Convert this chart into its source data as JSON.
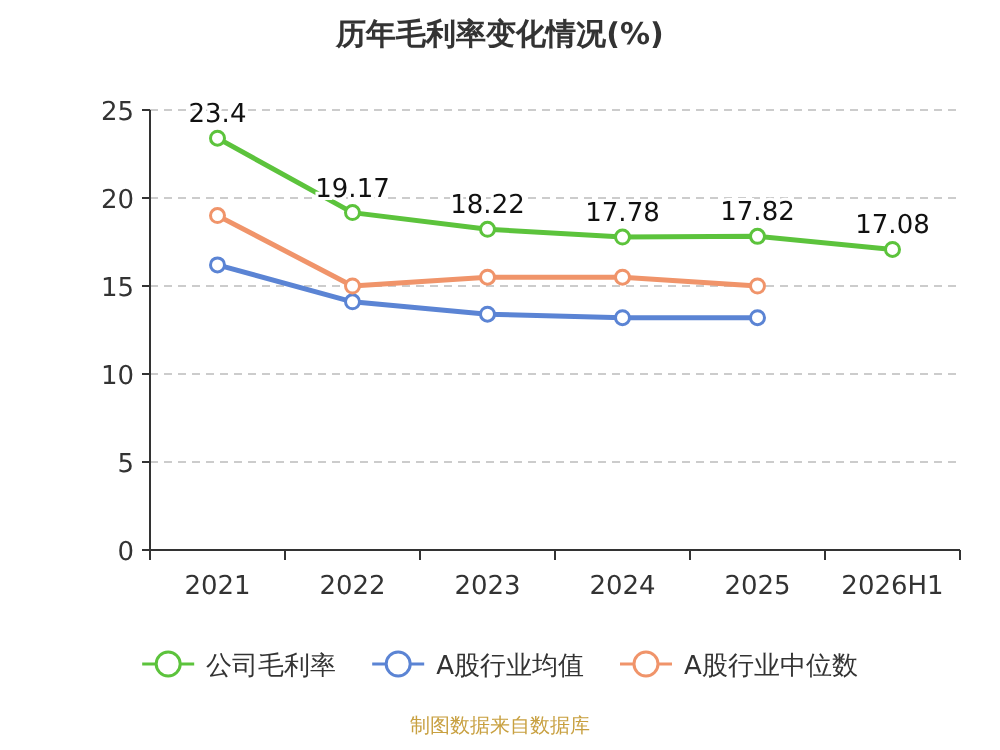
{
  "chart_data": {
    "type": "line",
    "title": "历年毛利率变化情况(%)",
    "categories": [
      "2021",
      "2022",
      "2023",
      "2024",
      "2025",
      "2026H1"
    ],
    "series": [
      {
        "name": "公司毛利率",
        "color": "#5cc33c",
        "values": [
          23.4,
          19.17,
          18.22,
          17.78,
          17.82,
          17.08
        ],
        "value_labels": [
          "23.4",
          "19.17",
          "18.22",
          "17.78",
          "17.82",
          "17.08"
        ]
      },
      {
        "name": "A股行业均值",
        "color": "#5b84d4",
        "values": [
          16.2,
          14.1,
          13.4,
          13.2,
          13.2,
          null
        ]
      },
      {
        "name": "A股行业中位数",
        "color": "#f0946a",
        "values": [
          19.0,
          15.0,
          15.5,
          15.5,
          15.0,
          null
        ]
      }
    ],
    "ylim": [
      0,
      25
    ],
    "yticks": [
      0,
      5,
      10,
      15,
      20,
      25
    ],
    "grid": "y",
    "legend": "bottom",
    "marker": "circle",
    "annotations": [
      "制图数据来自数据库"
    ]
  }
}
